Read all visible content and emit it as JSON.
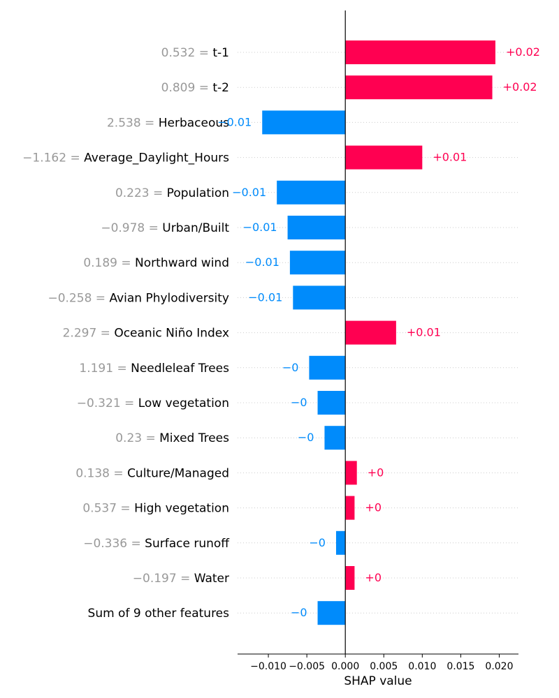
{
  "chart_data": {
    "type": "bar",
    "orientation": "horizontal",
    "xlabel": "SHAP value",
    "xlim": [
      -0.014,
      0.0225
    ],
    "xticks": [
      -0.01,
      -0.005,
      0.0,
      0.005,
      0.01,
      0.015,
      0.02
    ],
    "xtick_labels": [
      "−0.010",
      "−0.005",
      "0.000",
      "0.005",
      "0.010",
      "0.015",
      "0.020"
    ],
    "grid": "horizontal dotted lines per feature",
    "colors": {
      "positive": "#ff0051",
      "negative": "#008bfb",
      "value_text": "#999999"
    },
    "features": [
      {
        "value": "0.532",
        "name": "t-1",
        "shap": 0.0195,
        "label": "+0.02"
      },
      {
        "value": "0.809",
        "name": "t-2",
        "shap": 0.0191,
        "label": "+0.02"
      },
      {
        "value": "2.538",
        "name": "Herbaceous",
        "shap": -0.0108,
        "label": "−0.01"
      },
      {
        "value": "−1.162",
        "name": "Average_Daylight_Hours",
        "shap": 0.01,
        "label": "+0.01"
      },
      {
        "value": "0.223",
        "name": "Population",
        "shap": -0.0089,
        "label": "−0.01"
      },
      {
        "value": "−0.978",
        "name": "Urban/Built",
        "shap": -0.0075,
        "label": "−0.01"
      },
      {
        "value": "0.189",
        "name": "Northward wind",
        "shap": -0.0072,
        "label": "−0.01"
      },
      {
        "value": "−0.258",
        "name": "Avian Phylodiversity",
        "shap": -0.0068,
        "label": "−0.01"
      },
      {
        "value": "2.297",
        "name": "Oceanic Niño Index",
        "shap": 0.0066,
        "label": "+0.01"
      },
      {
        "value": "1.191",
        "name": "Needleleaf Trees",
        "shap": -0.0047,
        "label": "−0"
      },
      {
        "value": "−0.321",
        "name": "Low vegetation",
        "shap": -0.0036,
        "label": "−0"
      },
      {
        "value": "0.23",
        "name": "Mixed Trees",
        "shap": -0.0027,
        "label": "−0"
      },
      {
        "value": "0.138",
        "name": "Culture/Managed",
        "shap": 0.0015,
        "label": "+0"
      },
      {
        "value": "0.537",
        "name": "High vegetation",
        "shap": 0.0012,
        "label": "+0"
      },
      {
        "value": "−0.336",
        "name": "Surface runoff",
        "shap": -0.0012,
        "label": "−0"
      },
      {
        "value": "−0.197",
        "name": "Water",
        "shap": 0.0012,
        "label": "+0"
      },
      {
        "value": "",
        "name": "Sum of 9 other features",
        "shap": -0.0036,
        "label": "−0"
      }
    ]
  }
}
